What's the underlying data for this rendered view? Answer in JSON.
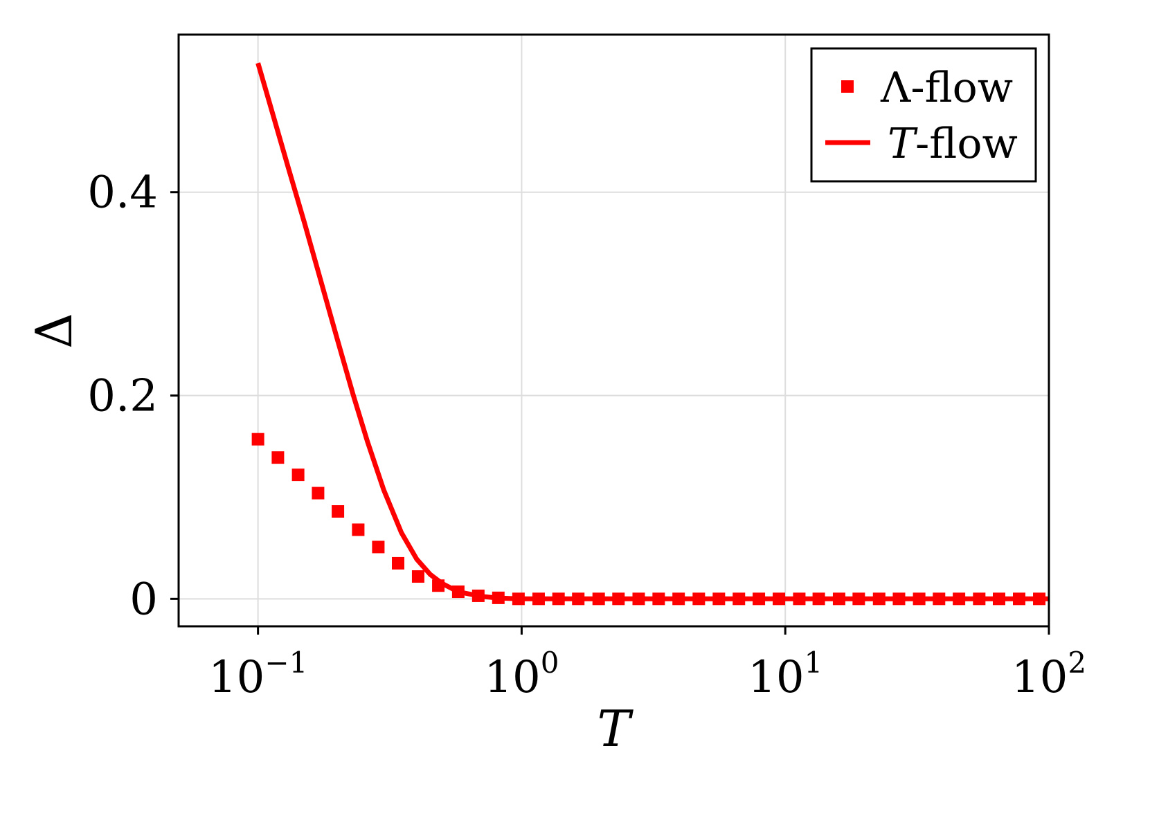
{
  "chart_data": {
    "type": "line",
    "xlabel": "T",
    "ylabel": "Δ",
    "xscale": "log",
    "xlim": [
      0.05,
      100
    ],
    "ylim": [
      -0.027,
      0.555
    ],
    "grid": true,
    "legend_position": "top-right",
    "colors": {
      "series": "#ff0000",
      "grid": "#dddddd",
      "axis": "#000000"
    },
    "x_ticks": [
      {
        "value": 0.1,
        "base": "10",
        "exp": "−1"
      },
      {
        "value": 1,
        "base": "10",
        "exp": "0"
      },
      {
        "value": 10,
        "base": "10",
        "exp": "1"
      },
      {
        "value": 100,
        "base": "10",
        "exp": "2"
      }
    ],
    "y_ticks": [
      {
        "value": 0,
        "label": "0"
      },
      {
        "value": 0.2,
        "label": "0.2"
      },
      {
        "value": 0.4,
        "label": "0.4"
      }
    ],
    "series": [
      {
        "name": "Λ-flow",
        "legend_symbol": "Λ",
        "legend_suffix": "-flow",
        "style": "markers",
        "x": [
          0.1,
          0.119,
          0.142,
          0.169,
          0.201,
          0.24,
          0.286,
          0.34,
          0.405,
          0.483,
          0.575,
          0.685,
          0.816,
          0.973,
          1.16,
          1.38,
          1.64,
          1.96,
          2.33,
          2.78,
          3.31,
          3.94,
          4.7,
          5.6,
          6.67,
          7.94,
          9.46,
          11.3,
          13.4,
          16.0,
          19.0,
          22.7,
          27.0,
          32.2,
          38.3,
          45.6,
          54.4,
          64.7,
          77.1,
          91.9
        ],
        "y": [
          0.157,
          0.139,
          0.122,
          0.104,
          0.086,
          0.068,
          0.051,
          0.035,
          0.022,
          0.013,
          0.007,
          0.003,
          0.001,
          0,
          0,
          0,
          0,
          0,
          0,
          0,
          0,
          0,
          0,
          0,
          0,
          0,
          0,
          0,
          0,
          0,
          0,
          0,
          0,
          0,
          0,
          0,
          0,
          0,
          0,
          0
        ]
      },
      {
        "name": "T-flow",
        "legend_symbol": "T",
        "legend_suffix": "-flow",
        "style": "line",
        "x": [
          0.1,
          0.11,
          0.12,
          0.13,
          0.15,
          0.17,
          0.2,
          0.23,
          0.26,
          0.3,
          0.35,
          0.4,
          0.45,
          0.5,
          0.55,
          0.6,
          0.7,
          0.8,
          0.9,
          1.0,
          1.2,
          1.5,
          2,
          5,
          10,
          30,
          100
        ],
        "y": [
          0.527,
          0.49,
          0.456,
          0.425,
          0.37,
          0.32,
          0.255,
          0.2,
          0.155,
          0.107,
          0.065,
          0.039,
          0.024,
          0.015,
          0.0095,
          0.006,
          0.0025,
          0.001,
          0.0004,
          0.0001,
          0,
          0,
          0,
          0,
          0,
          0,
          0
        ]
      }
    ]
  }
}
